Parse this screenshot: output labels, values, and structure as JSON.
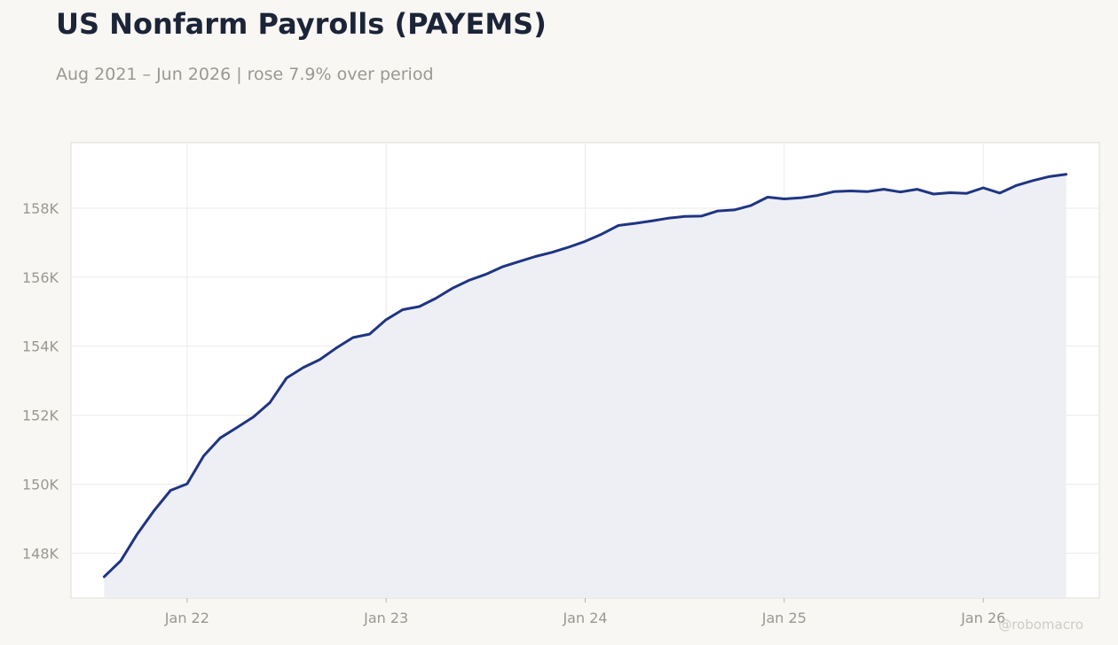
{
  "title": "US Nonfarm Payrolls (PAYEMS)",
  "subtitle": "Aug 2021 – Jun 2026 | rose 7.9% over period",
  "watermark": "@robomacro",
  "colors": {
    "line": "#1f3582",
    "fill": "#eceef4",
    "background": "#f8f7f4",
    "plot_background": "#ffffff",
    "grid": "#ecebe8",
    "text": "#9a9890"
  },
  "chart_data": {
    "type": "area",
    "title": "US Nonfarm Payrolls (PAYEMS)",
    "subtitle": "Aug 2021 – Jun 2026 | rose 7.9% over period",
    "xlabel": "",
    "ylabel": "",
    "grid": true,
    "legend": "none",
    "xlim": [
      "2021-06",
      "2026-08"
    ],
    "ylim": [
      146700,
      159900
    ],
    "x_ticks": [
      "2022-01",
      "2023-01",
      "2024-01",
      "2025-01",
      "2026-01"
    ],
    "x_tick_labels": [
      "Jan 22",
      "Jan 23",
      "Jan 24",
      "Jan 25",
      "Jan 26"
    ],
    "y_ticks": [
      148000,
      150000,
      152000,
      154000,
      156000,
      158000
    ],
    "y_tick_labels": [
      "148K",
      "150K",
      "152K",
      "154K",
      "156K",
      "158K"
    ],
    "series": [
      {
        "x": [
          "2021-08",
          "2021-09",
          "2021-10",
          "2021-11",
          "2021-12",
          "2022-01",
          "2022-02",
          "2022-03",
          "2022-04",
          "2022-05",
          "2022-06",
          "2022-07",
          "2022-08",
          "2022-09",
          "2022-10",
          "2022-11",
          "2022-12",
          "2023-01",
          "2023-02",
          "2023-03",
          "2023-04",
          "2023-05",
          "2023-06",
          "2023-07",
          "2023-08",
          "2023-09",
          "2023-10",
          "2023-11",
          "2023-12",
          "2024-01",
          "2024-02",
          "2024-03",
          "2024-04",
          "2024-05",
          "2024-06",
          "2024-07",
          "2024-08",
          "2024-09",
          "2024-10",
          "2024-11",
          "2024-12",
          "2025-01",
          "2025-02",
          "2025-03",
          "2025-04",
          "2025-05",
          "2025-06",
          "2025-07",
          "2025-08",
          "2025-09",
          "2025-10",
          "2025-11",
          "2025-12",
          "2026-01",
          "2026-02",
          "2026-03",
          "2026-04",
          "2026-05",
          "2026-06"
        ],
        "values": [
          147320,
          147780,
          148560,
          149230,
          149820,
          150010,
          150820,
          151340,
          151640,
          151950,
          152370,
          153080,
          153380,
          153610,
          153950,
          154250,
          154350,
          154770,
          155060,
          155150,
          155390,
          155680,
          155910,
          156080,
          156300,
          156450,
          156600,
          156720,
          156870,
          157040,
          157250,
          157500,
          157560,
          157630,
          157710,
          157760,
          157770,
          157920,
          157950,
          158080,
          158320,
          158270,
          158300,
          158370,
          158480,
          158500,
          158480,
          158550,
          158470,
          158550,
          158410,
          158450,
          158430,
          158590,
          158440,
          158660,
          158800,
          158920,
          158980
        ]
      }
    ]
  }
}
